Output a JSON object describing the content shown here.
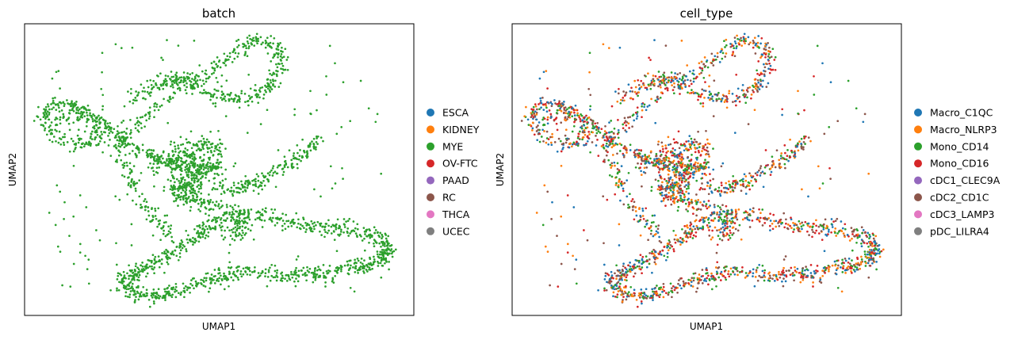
{
  "chart_data": [
    {
      "type": "scatter",
      "title": "batch",
      "xlabel": "UMAP1",
      "ylabel": "UMAP2",
      "xticks": [],
      "yticks": [],
      "grid": false,
      "legend_placement": "right",
      "legend": [
        {
          "label": "ESCA",
          "color": "#1f77b4"
        },
        {
          "label": "KIDNEY",
          "color": "#ff7f0e"
        },
        {
          "label": "MYE",
          "color": "#2ca02c"
        },
        {
          "label": "OV-FTC",
          "color": "#d62728"
        },
        {
          "label": "PAAD",
          "color": "#9467bd"
        },
        {
          "label": "RC",
          "color": "#8c564b"
        },
        {
          "label": "THCA",
          "color": "#e377c2"
        },
        {
          "label": "UCEC",
          "color": "#7f7f7f"
        }
      ],
      "points_color": [
        "MYE"
      ]
    },
    {
      "type": "scatter",
      "title": "cell_type",
      "xlabel": "UMAP1",
      "ylabel": "UMAP2",
      "xticks": [],
      "yticks": [],
      "grid": false,
      "legend_placement": "right",
      "legend": [
        {
          "label": "Macro_C1QC",
          "color": "#1f77b4"
        },
        {
          "label": "Macro_NLRP3",
          "color": "#ff7f0e"
        },
        {
          "label": "Mono_CD14",
          "color": "#2ca02c"
        },
        {
          "label": "Mono_CD16",
          "color": "#d62728"
        },
        {
          "label": "cDC1_CLEC9A",
          "color": "#9467bd"
        },
        {
          "label": "cDC2_CD1C",
          "color": "#8c564b"
        },
        {
          "label": "cDC3_LAMP3",
          "color": "#e377c2"
        },
        {
          "label": "pDC_LILRA4",
          "color": "#7f7f7f"
        }
      ],
      "points_color": [
        "Mono_CD16",
        "Mono_CD14",
        "Macro_C1QC",
        "Macro_NLRP3",
        "cDC2_CD1C"
      ]
    }
  ]
}
